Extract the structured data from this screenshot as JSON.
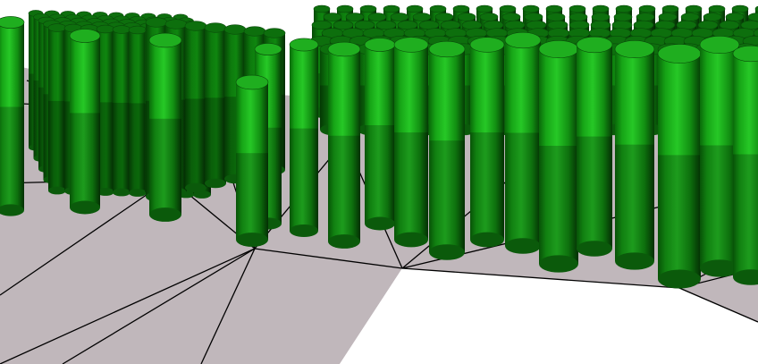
{
  "scene": {
    "subject": "3d-render-cylinders-on-triangulated-terrain",
    "colors": {
      "background": "#ffffff",
      "ground": "#c0b7bb",
      "mesh_line": "#000000",
      "cylinder_light": "#22c022",
      "cylinder_mid": "#119911",
      "cylinder_dark": "#085c08",
      "cylinder_top": "#1fae1f",
      "cylinder_top_dark": "#0d6f0d"
    }
  }
}
